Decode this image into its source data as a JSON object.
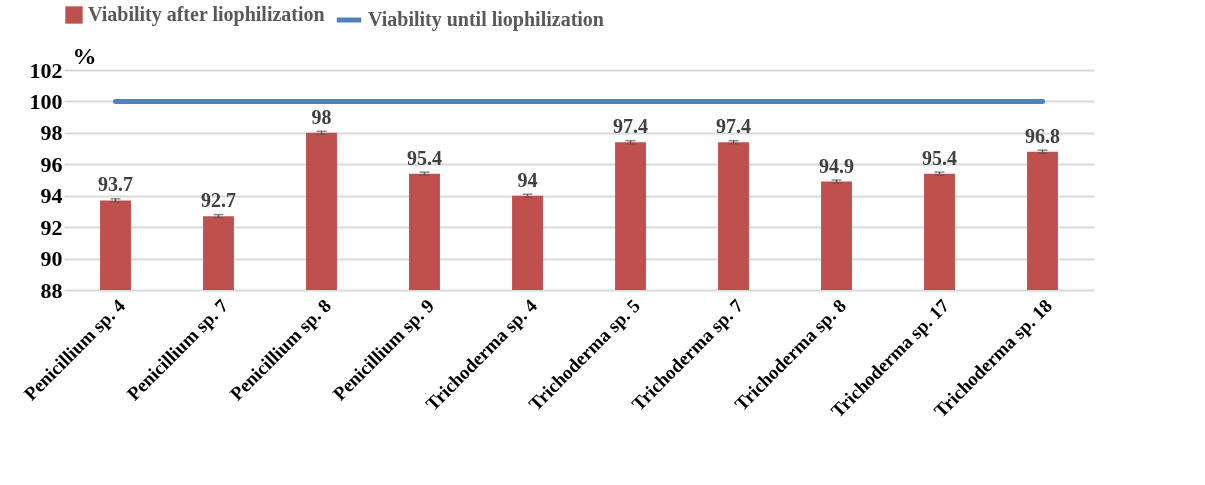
{
  "chart_data": {
    "type": "bar",
    "ylabel": "%",
    "categories": [
      "Penicillium sp. 4",
      "Penicillium sp. 7",
      "Penicillium sp. 8",
      "Penicillium sp. 9",
      "Trichoderma sp. 4",
      "Trichoderma sp. 5",
      "Trichoderma sp. 7",
      "Trichoderma sp. 8",
      "Trichoderma sp. 17",
      "Trichoderma sp. 18"
    ],
    "series": [
      {
        "name": "Viability after liophilization",
        "color": "#c0504d",
        "values": [
          93.7,
          92.7,
          98,
          95.4,
          94,
          97.4,
          97.4,
          94.9,
          95.4,
          96.8
        ],
        "errors": [
          0.1,
          0.1,
          0.1,
          0.1,
          0.1,
          0.1,
          0.1,
          0.1,
          0.1,
          0.1
        ],
        "data_labels": true
      },
      {
        "name": "Viability until liophilization",
        "type": "line",
        "color": "#4f81bd",
        "values": [
          100,
          100,
          100,
          100,
          100,
          100,
          100,
          100,
          100,
          100
        ]
      }
    ],
    "ylim": [
      88,
      102
    ],
    "yticks": [
      88,
      90,
      92,
      94,
      96,
      98,
      100,
      102
    ],
    "grid": "y",
    "legend": "top",
    "marker": "none"
  }
}
